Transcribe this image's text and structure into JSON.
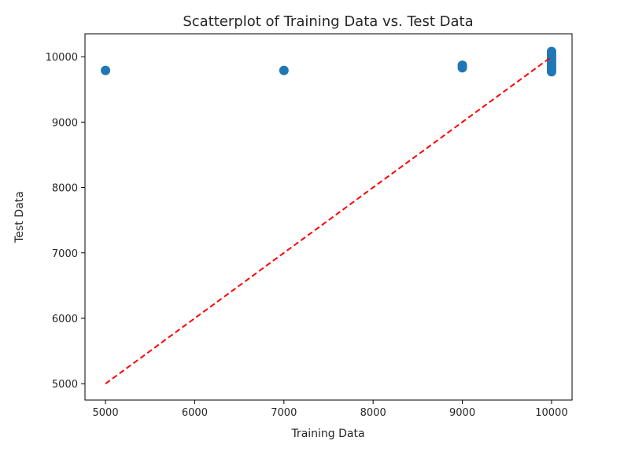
{
  "chart_data": {
    "type": "scatter",
    "title": "Scatterplot of Training Data vs. Test Data",
    "xlabel": "Training Data",
    "ylabel": "Test Data",
    "xlim": [
      4770,
      10230
    ],
    "ylim": [
      4750,
      10350
    ],
    "xticks": [
      5000,
      6000,
      7000,
      8000,
      9000,
      10000
    ],
    "yticks": [
      5000,
      6000,
      7000,
      8000,
      9000,
      10000
    ],
    "grid": false,
    "series": [
      {
        "marker": "circle",
        "color": "#1f77b4",
        "points": [
          {
            "x": 5000,
            "y": 9790
          },
          {
            "x": 7000,
            "y": 9790
          },
          {
            "x": 9000,
            "y": 9830
          },
          {
            "x": 9000,
            "y": 9870
          },
          {
            "x": 10000,
            "y": 9770
          },
          {
            "x": 10000,
            "y": 9810
          },
          {
            "x": 10000,
            "y": 9850
          },
          {
            "x": 10000,
            "y": 9890
          },
          {
            "x": 10000,
            "y": 9930
          },
          {
            "x": 10000,
            "y": 9970
          },
          {
            "x": 10000,
            "y": 10010
          },
          {
            "x": 10000,
            "y": 10050
          },
          {
            "x": 10000,
            "y": 10080
          }
        ]
      }
    ],
    "reference_line": {
      "style": "dashed",
      "color": "#ff0000",
      "from": {
        "x": 5000,
        "y": 5000
      },
      "to": {
        "x": 10000,
        "y": 10000
      }
    }
  }
}
